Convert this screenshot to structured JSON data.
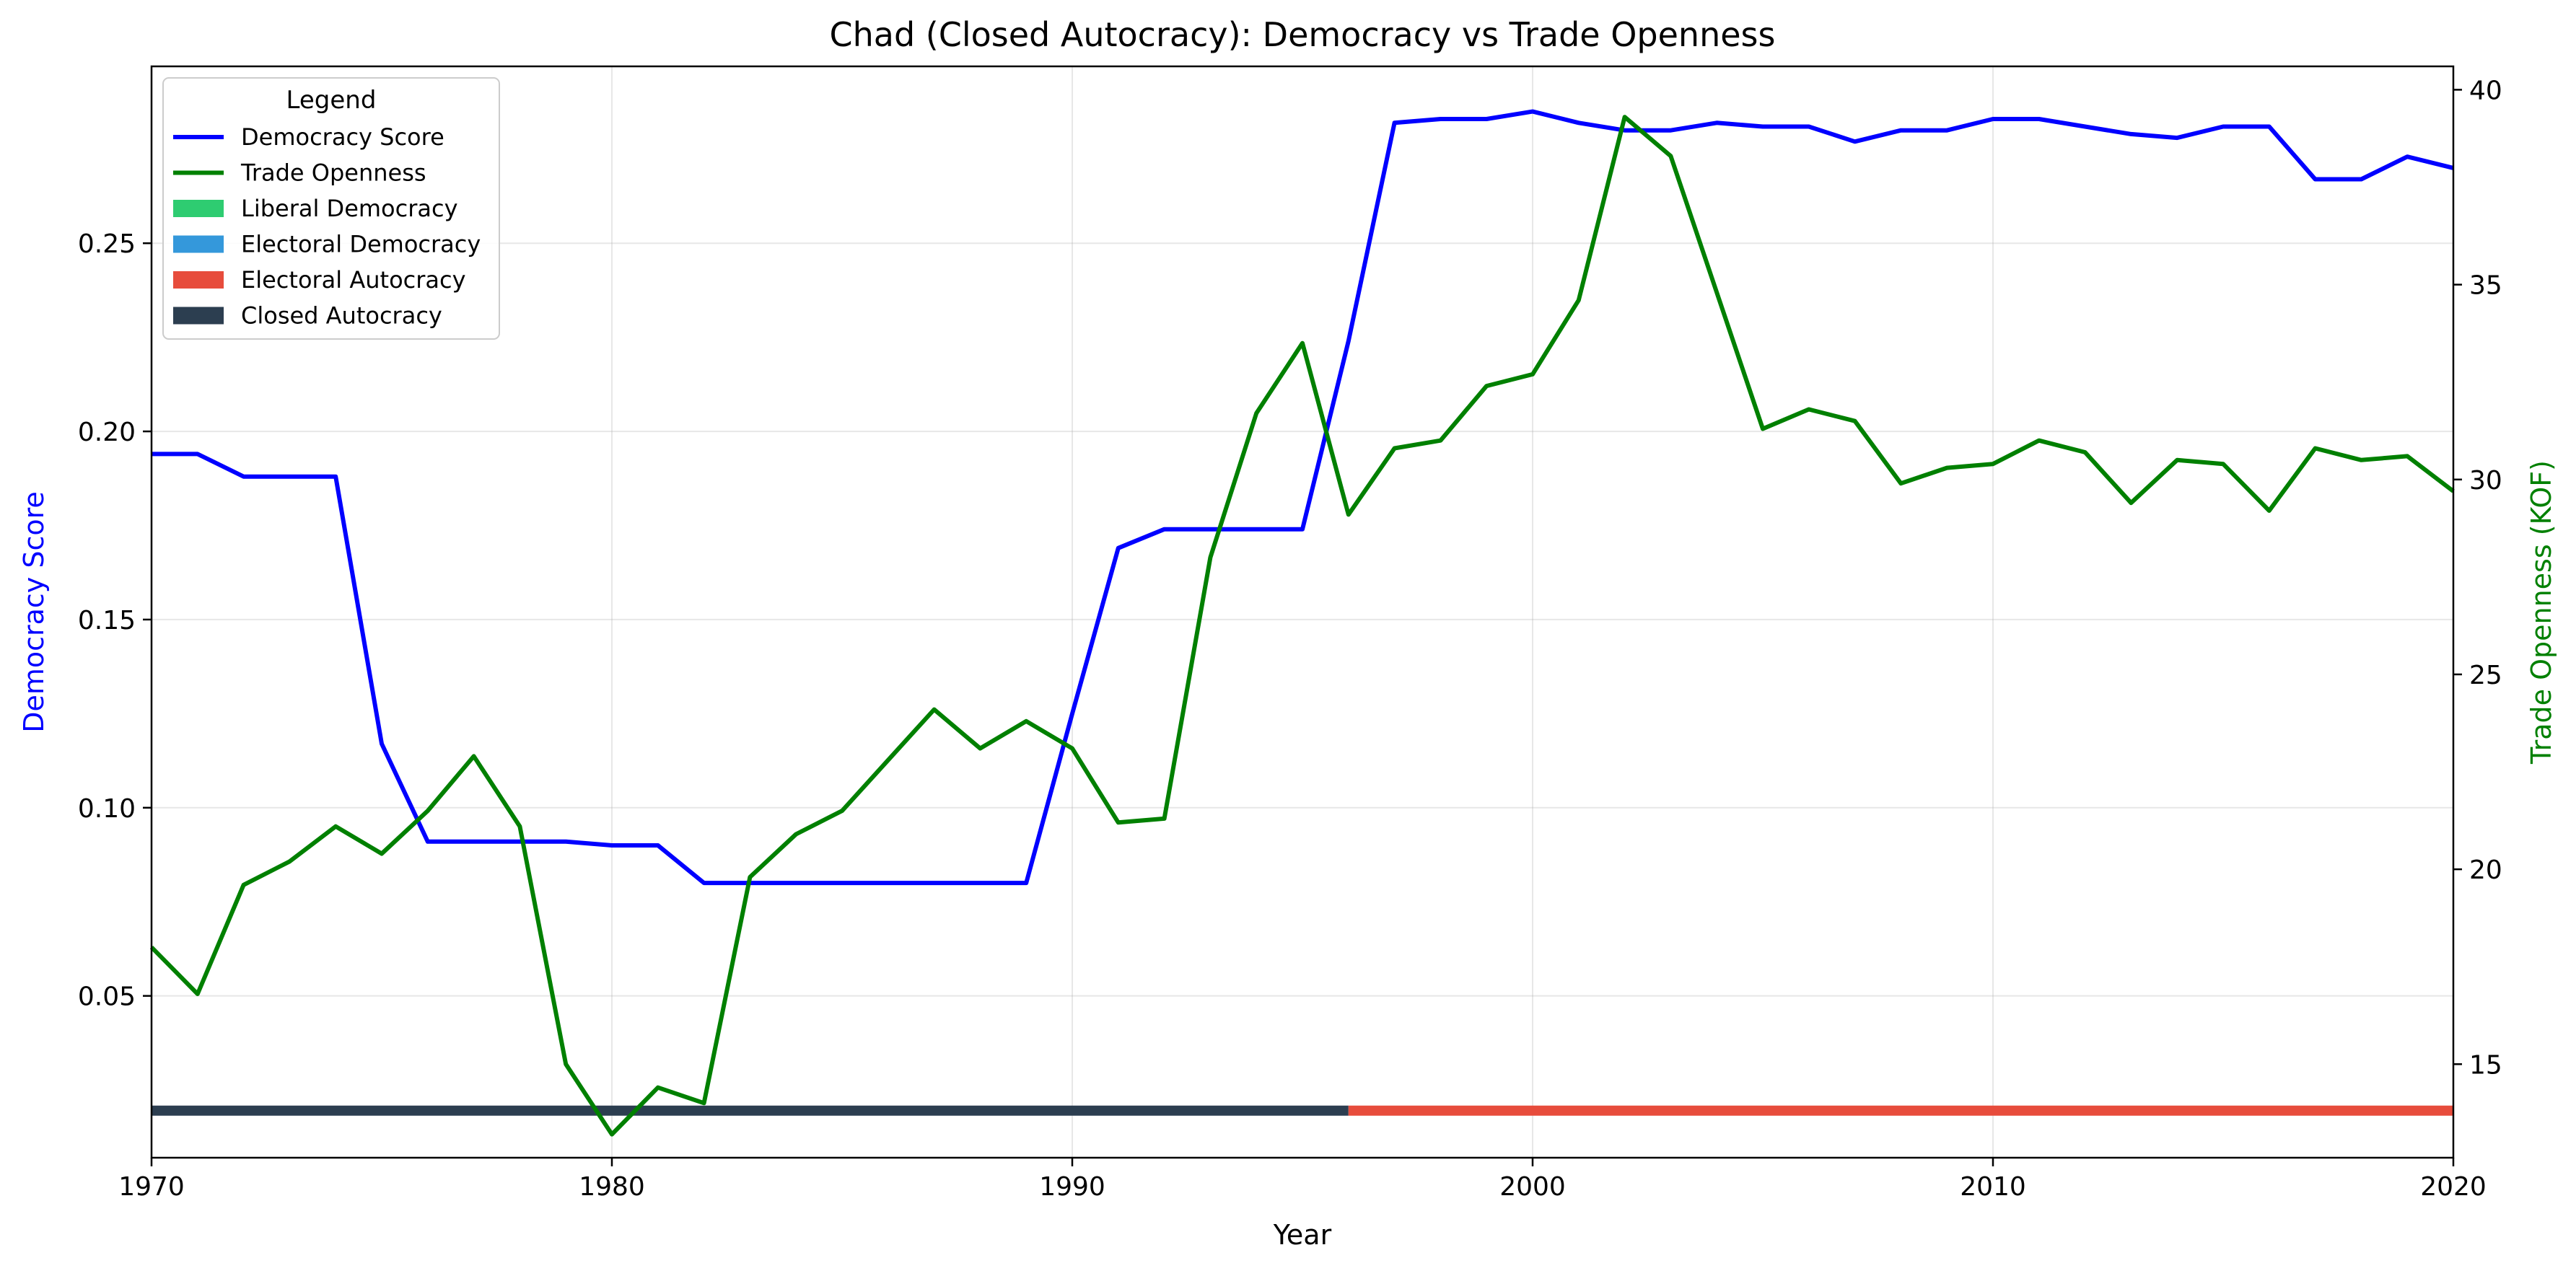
{
  "chart_data": {
    "type": "line",
    "title": "Chad (Closed Autocracy): Democracy vs Trade Openness",
    "xlabel": "Year",
    "ylabel_left": "Democracy Score",
    "ylabel_right": "Trade Openness (KOF)",
    "xlim": [
      1970,
      2020
    ],
    "ylim_left": [
      0.007,
      0.297
    ],
    "ylim_right": [
      12.6,
      40.6
    ],
    "x_ticks": [
      1970,
      1980,
      1990,
      2000,
      2010,
      2020
    ],
    "y_left_ticks": [
      0.05,
      0.1,
      0.15,
      0.2,
      0.25
    ],
    "y_left_tick_labels": [
      "0.05",
      "0.10",
      "0.15",
      "0.20",
      "0.25"
    ],
    "y_right_ticks": [
      15,
      20,
      25,
      30,
      35,
      40
    ],
    "grid": true,
    "legend": {
      "title": "Legend",
      "placement": "upper-left",
      "entries": [
        {
          "label": "Democracy Score",
          "kind": "line",
          "color": "#0000ff"
        },
        {
          "label": "Trade Openness",
          "kind": "line",
          "color": "#008000"
        },
        {
          "label": "Liberal Democracy",
          "kind": "patch",
          "color": "#2ecc71"
        },
        {
          "label": "Electoral Democracy",
          "kind": "patch",
          "color": "#3498db"
        },
        {
          "label": "Electoral Autocracy",
          "kind": "patch",
          "color": "#e74c3c"
        },
        {
          "label": "Closed Autocracy",
          "kind": "patch",
          "color": "#2c3e50"
        }
      ]
    },
    "series": [
      {
        "name": "Democracy Score",
        "axis": "left",
        "color": "#0000ff",
        "x": [
          1970,
          1971,
          1972,
          1973,
          1974,
          1975,
          1976,
          1977,
          1978,
          1979,
          1980,
          1981,
          1982,
          1983,
          1984,
          1985,
          1986,
          1987,
          1988,
          1989,
          1990,
          1991,
          1992,
          1993,
          1994,
          1995,
          1996,
          1997,
          1998,
          1999,
          2000,
          2001,
          2002,
          2003,
          2004,
          2005,
          2006,
          2007,
          2008,
          2009,
          2010,
          2011,
          2012,
          2013,
          2014,
          2015,
          2016,
          2017,
          2018,
          2019,
          2020
        ],
        "y": [
          0.194,
          0.194,
          0.188,
          0.188,
          0.188,
          0.117,
          0.091,
          0.091,
          0.091,
          0.091,
          0.09,
          0.09,
          0.08,
          0.08,
          0.08,
          0.08,
          0.08,
          0.08,
          0.08,
          0.08,
          0.125,
          0.169,
          0.174,
          0.174,
          0.174,
          0.174,
          0.224,
          0.282,
          0.283,
          0.283,
          0.285,
          0.282,
          0.28,
          0.28,
          0.282,
          0.281,
          0.281,
          0.277,
          0.28,
          0.28,
          0.283,
          0.283,
          0.281,
          0.279,
          0.278,
          0.281,
          0.281,
          0.267,
          0.267,
          0.273,
          0.27
        ]
      },
      {
        "name": "Trade Openness",
        "axis": "right",
        "color": "#008000",
        "x": [
          1970,
          1971,
          1972,
          1973,
          1974,
          1975,
          1976,
          1977,
          1978,
          1979,
          1980,
          1981,
          1982,
          1983,
          1984,
          1985,
          1986,
          1987,
          1988,
          1989,
          1990,
          1991,
          1992,
          1993,
          1994,
          1995,
          1996,
          1997,
          1998,
          1999,
          2000,
          2001,
          2002,
          2003,
          2004,
          2005,
          2006,
          2007,
          2008,
          2009,
          2010,
          2011,
          2012,
          2013,
          2014,
          2015,
          2016,
          2017,
          2018,
          2019,
          2020
        ],
        "y": [
          18.0,
          16.8,
          19.6,
          20.2,
          21.1,
          20.4,
          21.5,
          22.9,
          21.1,
          15.0,
          13.2,
          14.4,
          14.0,
          19.8,
          20.9,
          21.5,
          22.8,
          24.1,
          23.1,
          23.8,
          23.1,
          21.2,
          21.3,
          28.0,
          31.7,
          33.5,
          29.1,
          30.8,
          31.0,
          32.4,
          32.7,
          34.6,
          39.3,
          38.3,
          34.8,
          31.3,
          31.8,
          31.5,
          29.9,
          30.3,
          30.4,
          31.0,
          30.7,
          29.4,
          30.5,
          30.4,
          29.2,
          30.8,
          30.5,
          30.6,
          29.7
        ]
      }
    ],
    "regime_band": {
      "y_left": 0.0195,
      "segments": [
        {
          "label": "Closed Autocracy",
          "x_start": 1970,
          "x_end": 1996,
          "color": "#2c3e50"
        },
        {
          "label": "Electoral Autocracy",
          "x_start": 1996,
          "x_end": 2020,
          "color": "#e74c3c"
        }
      ]
    }
  }
}
